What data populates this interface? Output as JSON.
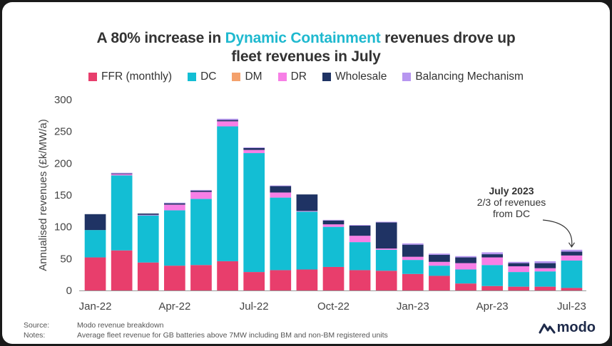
{
  "title": {
    "before": "A 80% increase in ",
    "highlight": "Dynamic Containment",
    "after": " revenues drove up",
    "line2": "fleet revenues in July"
  },
  "footer": {
    "source_label": "Source:",
    "source_text": "Modo revenue breakdown",
    "notes_label": "Notes:",
    "notes_text": "Average fleet revenue for GB batteries above 7MW including BM and non-BM registered units"
  },
  "logo": {
    "text": "modo",
    "icon": "modo-logo-icon"
  },
  "colors": {
    "FFR (monthly)": "#e83e6c",
    "DC": "#13bed4",
    "DM": "#f4a16c",
    "DR": "#f77fe6",
    "Wholesale": "#1f3364",
    "Balancing Mechanism": "#b796f0"
  },
  "chart_data": {
    "type": "bar",
    "stacked": true,
    "title": "A 80% increase in Dynamic Containment revenues drove up fleet revenues in July",
    "ylabel": "Annualised revenues (£k/MW/a)",
    "xlabel": "",
    "ylim": [
      0,
      300
    ],
    "yticks": [
      0,
      50,
      100,
      150,
      200,
      250,
      300
    ],
    "grid": false,
    "legend": "top",
    "categories": [
      "Jan-22",
      "Feb-22",
      "Mar-22",
      "Apr-22",
      "May-22",
      "Jun-22",
      "Jul-22",
      "Aug-22",
      "Sep-22",
      "Oct-22",
      "Nov-22",
      "Dec-22",
      "Jan-23",
      "Feb-23",
      "Mar-23",
      "Apr-23",
      "May-23",
      "Jun-23",
      "Jul-23"
    ],
    "xtick_labels": [
      "Jan-22",
      "",
      "",
      "Apr-22",
      "",
      "",
      "Jul-22",
      "",
      "",
      "Oct-22",
      "",
      "",
      "Jan-23",
      "",
      "",
      "Apr-23",
      "",
      "",
      "Jul-23"
    ],
    "series": [
      {
        "name": "FFR (monthly)",
        "values": [
          52,
          63,
          44,
          39,
          40,
          46,
          29,
          32,
          33,
          37,
          32,
          31,
          26,
          23,
          11,
          7,
          6,
          6,
          4
        ]
      },
      {
        "name": "DC",
        "values": [
          43,
          118,
          74,
          87,
          104,
          212,
          187,
          114,
          91,
          63,
          44,
          33,
          22,
          16,
          22,
          33,
          23,
          24,
          43
        ]
      },
      {
        "name": "DM",
        "values": [
          0,
          0,
          0,
          0,
          0,
          0,
          0,
          0,
          0,
          0,
          0,
          0,
          0,
          0,
          0,
          0,
          0,
          0,
          0
        ]
      },
      {
        "name": "DR",
        "values": [
          0,
          2,
          1,
          9,
          11,
          8,
          5,
          8,
          1,
          4,
          10,
          2,
          5,
          6,
          10,
          12,
          9,
          5,
          8
        ]
      },
      {
        "name": "Wholesale",
        "values": [
          25,
          1,
          2,
          2,
          2,
          2,
          3,
          10,
          26,
          6,
          16,
          41,
          19,
          11,
          9,
          5,
          5,
          8,
          6
        ]
      },
      {
        "name": "Balancing Mechanism",
        "values": [
          0,
          1,
          0,
          1,
          1,
          2,
          1,
          1,
          0,
          1,
          1,
          1,
          2,
          2,
          2,
          3,
          2,
          3,
          3
        ]
      }
    ],
    "annotation": {
      "title": "July 2023",
      "line1": "2/3 of revenues",
      "line2": "from DC",
      "target": "Jul-23"
    }
  }
}
